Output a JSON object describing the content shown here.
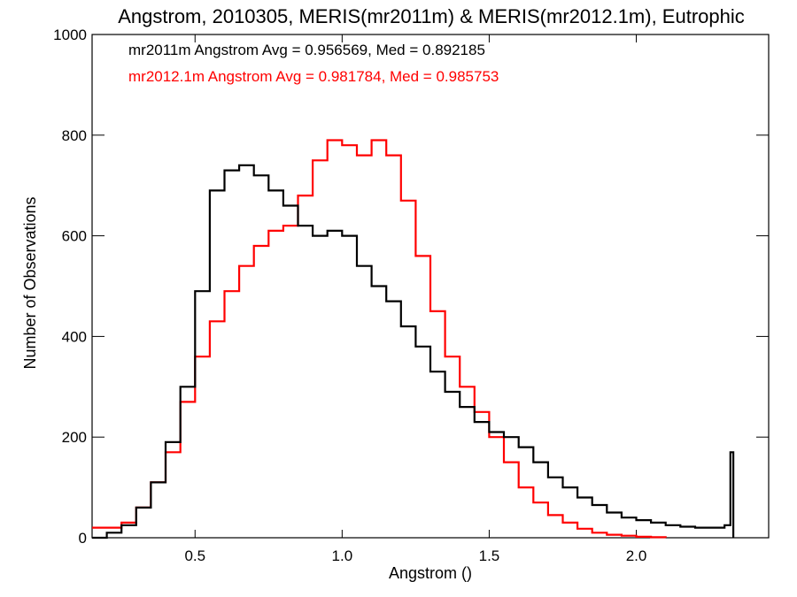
{
  "chart_data": {
    "type": "line",
    "step": true,
    "title": "Angstrom, 2010305, MERIS(mr2011m) & MERIS(mr2012.1m), Eutrophic",
    "xlabel": "Angstrom ()",
    "ylabel": "Number of Observations",
    "xlim": [
      0.15,
      2.45
    ],
    "ylim": [
      0,
      1000
    ],
    "x_ticks": [
      {
        "value": 0.5,
        "label": "0.5"
      },
      {
        "value": 1.0,
        "label": "1.0"
      },
      {
        "value": 1.5,
        "label": "1.5"
      },
      {
        "value": 2.0,
        "label": "2.0"
      }
    ],
    "y_ticks": [
      {
        "value": 0,
        "label": "0"
      },
      {
        "value": 200,
        "label": "200"
      },
      {
        "value": 400,
        "label": "400"
      },
      {
        "value": 600,
        "label": "600"
      },
      {
        "value": 800,
        "label": "800"
      },
      {
        "value": 1000,
        "label": "1000"
      }
    ],
    "annotations": [
      {
        "text": "mr2011m Angstrom Avg = 0.956569, Med = 0.892185",
        "color": "#000000"
      },
      {
        "text": "mr2012.1m Angstrom Avg = 0.981784, Med = 0.985753",
        "color": "#ff0000"
      }
    ],
    "series": [
      {
        "name": "mr2011m",
        "color": "#000000",
        "x": [
          0.15,
          0.2,
          0.25,
          0.3,
          0.35,
          0.4,
          0.45,
          0.5,
          0.55,
          0.6,
          0.65,
          0.7,
          0.75,
          0.8,
          0.85,
          0.9,
          0.95,
          1.0,
          1.05,
          1.1,
          1.15,
          1.2,
          1.25,
          1.3,
          1.35,
          1.4,
          1.45,
          1.5,
          1.55,
          1.6,
          1.65,
          1.7,
          1.75,
          1.8,
          1.85,
          1.9,
          1.95,
          2.0,
          2.05,
          2.1,
          2.15,
          2.2,
          2.25,
          2.3,
          2.32,
          2.33
        ],
        "values": [
          0,
          10,
          25,
          60,
          110,
          190,
          300,
          490,
          690,
          730,
          740,
          720,
          690,
          660,
          620,
          600,
          610,
          600,
          540,
          500,
          470,
          420,
          380,
          330,
          290,
          260,
          230,
          210,
          200,
          180,
          150,
          120,
          100,
          80,
          65,
          50,
          40,
          35,
          30,
          25,
          22,
          20,
          20,
          25,
          170,
          0
        ]
      },
      {
        "name": "mr2012.1m",
        "color": "#ff0000",
        "x": [
          0.15,
          0.2,
          0.25,
          0.3,
          0.35,
          0.4,
          0.45,
          0.5,
          0.55,
          0.6,
          0.65,
          0.7,
          0.75,
          0.8,
          0.85,
          0.9,
          0.95,
          1.0,
          1.05,
          1.1,
          1.15,
          1.2,
          1.25,
          1.3,
          1.35,
          1.4,
          1.45,
          1.5,
          1.55,
          1.6,
          1.65,
          1.7,
          1.75,
          1.8,
          1.85,
          1.9,
          1.95,
          2.0,
          2.05,
          2.1
        ],
        "values": [
          20,
          20,
          30,
          60,
          110,
          170,
          270,
          360,
          430,
          490,
          540,
          580,
          610,
          620,
          680,
          750,
          790,
          780,
          760,
          790,
          760,
          670,
          560,
          450,
          360,
          300,
          250,
          200,
          150,
          100,
          70,
          45,
          30,
          18,
          10,
          6,
          4,
          2,
          1,
          0
        ]
      }
    ]
  }
}
